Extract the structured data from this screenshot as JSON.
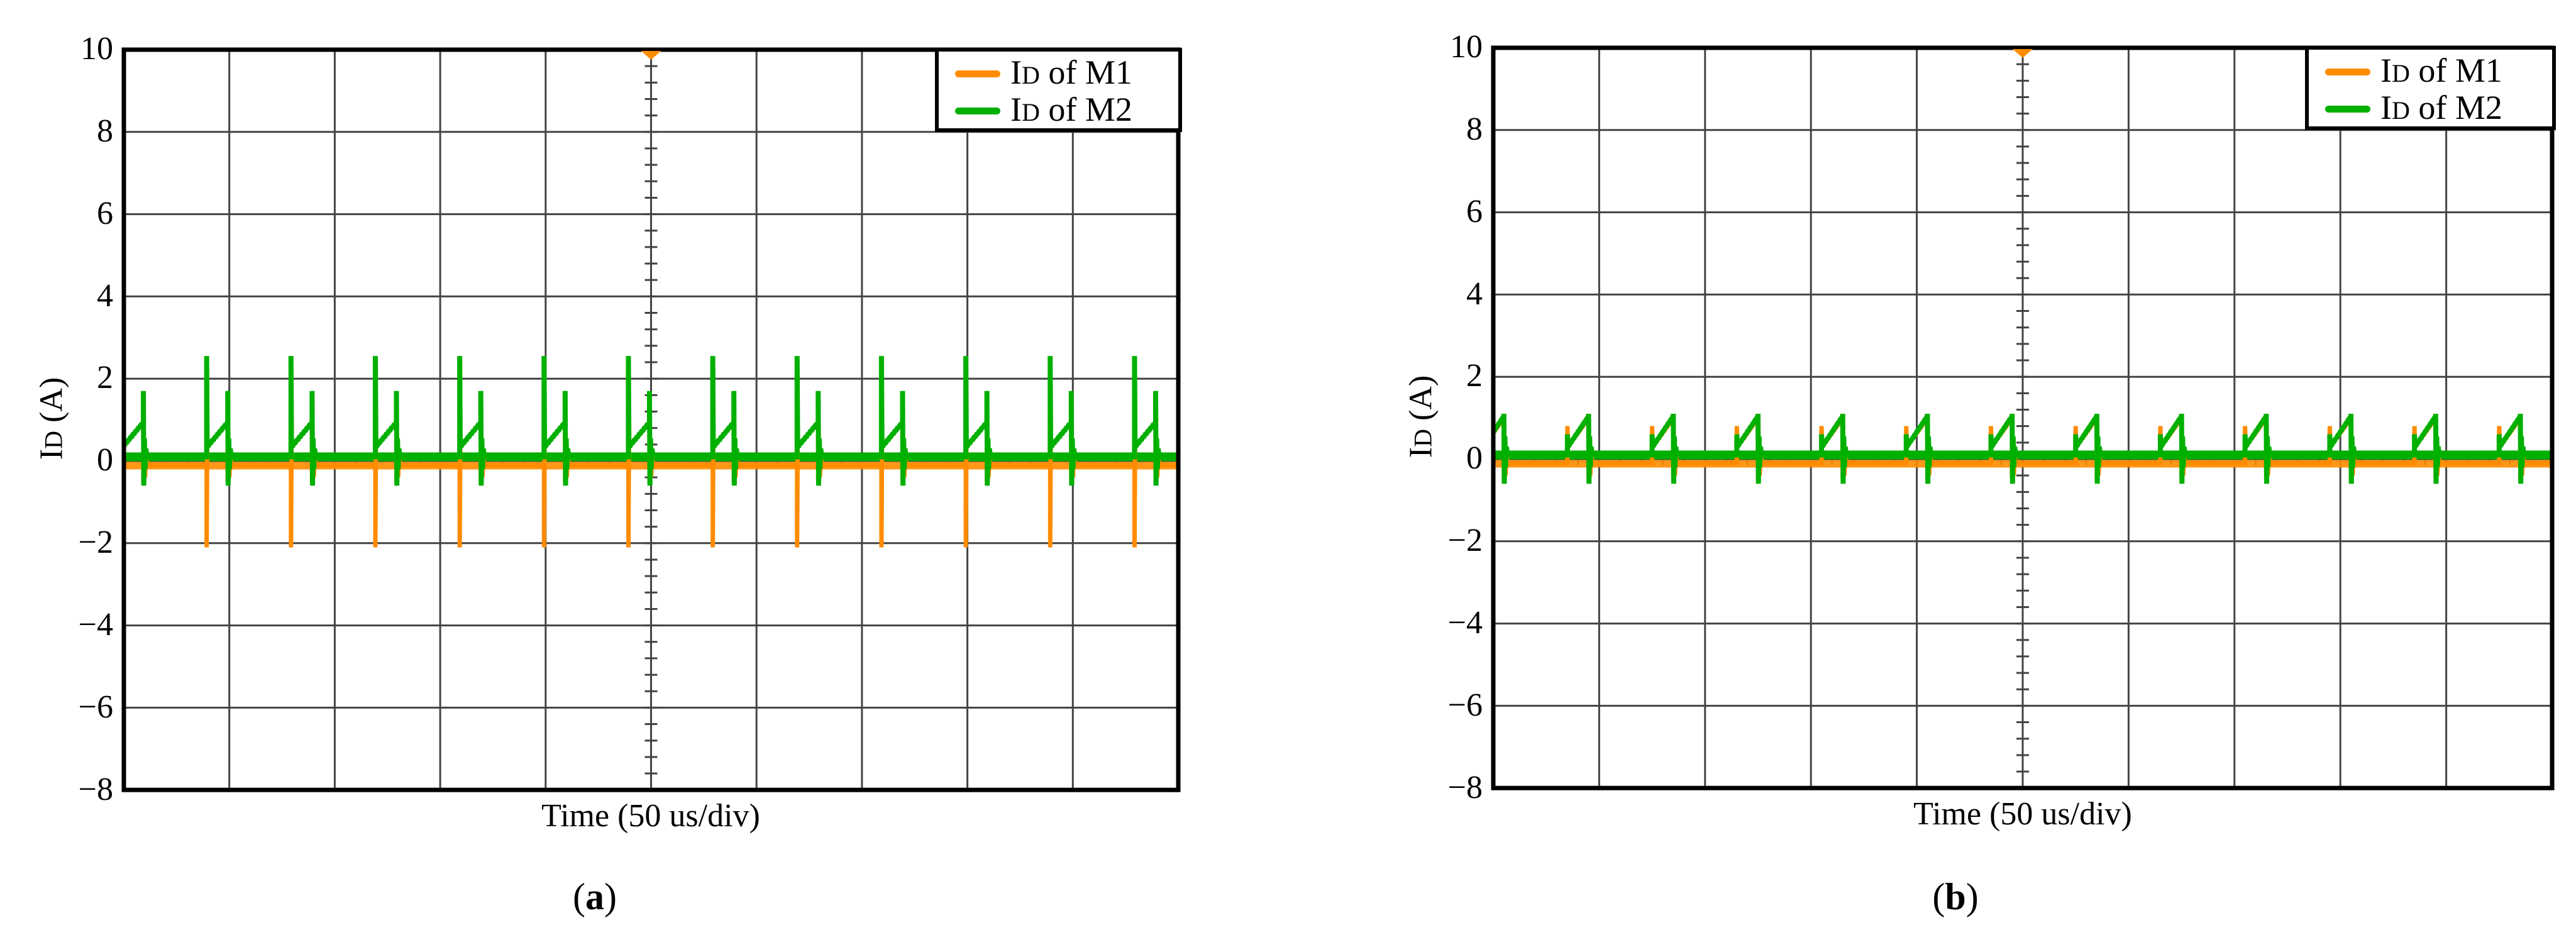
{
  "figure": {
    "panels": [
      {
        "id": "a",
        "subcaption": "a",
        "x_label": "Time (50 us/div)",
        "y_label_main": "I",
        "y_label_sub": "D",
        "y_label_unit": " (A)",
        "y_ticks": [
          "10",
          "8",
          "6",
          "4",
          "2",
          "0",
          "−2",
          "−4",
          "−6",
          "−8"
        ],
        "legend": [
          {
            "main": "I",
            "sub": "D",
            "rest": " of M1",
            "color": "#ff8c00"
          },
          {
            "main": "I",
            "sub": "D",
            "rest": " of M2",
            "color": "#00b000"
          }
        ]
      },
      {
        "id": "b",
        "subcaption": "b",
        "x_label": "Time (50 us/div)",
        "y_label_main": "I",
        "y_label_sub": "D",
        "y_label_unit": " (A)",
        "y_ticks": [
          "10",
          "8",
          "6",
          "4",
          "2",
          "0",
          "−2",
          "−4",
          "−6",
          "−8"
        ],
        "legend": [
          {
            "main": "I",
            "sub": "D",
            "rest": " of M1",
            "color": "#ff8c00"
          },
          {
            "main": "I",
            "sub": "D",
            "rest": " of M2",
            "color": "#00b000"
          }
        ]
      }
    ]
  },
  "chart_data": [
    {
      "type": "line",
      "title": "(a)",
      "xlabel": "Time (50 us/div)",
      "ylabel": "ID (A)",
      "ylim": [
        -8,
        10
      ],
      "x_divisions": 10,
      "y_ticks": [
        10,
        8,
        6,
        4,
        2,
        0,
        -2,
        -4,
        -6,
        -8
      ],
      "grid": true,
      "legend_position": "upper right",
      "trigger_marker": {
        "color": "#ff8c00",
        "position": "top-center"
      },
      "period_div": 0.8,
      "pulse_width_div": 0.2,
      "series": [
        {
          "name": "ID of M1",
          "color": "#ff8c00",
          "baseline_A": -0.1,
          "pulse_start_A": 0.35,
          "pulse_end_A": 0.95,
          "turn_on_spike_A": -2.1,
          "turn_off_spike_A": -0.5
        },
        {
          "name": "ID of M2",
          "color": "#00b000",
          "baseline_A": 0.1,
          "pulse_start_A": 0.35,
          "pulse_end_A": 0.95,
          "turn_on_spike_A": 2.55,
          "turn_off_spike_A": 1.7,
          "turn_off_undershoot_A": -0.6
        }
      ]
    },
    {
      "type": "line",
      "title": "(b)",
      "xlabel": "Time (50 us/div)",
      "ylabel": "ID (A)",
      "ylim": [
        -8,
        10
      ],
      "x_divisions": 10,
      "y_ticks": [
        10,
        8,
        6,
        4,
        2,
        0,
        -2,
        -4,
        -6,
        -8
      ],
      "grid": true,
      "legend_position": "upper right",
      "trigger_marker": {
        "color": "#ff8c00",
        "position": "top-center"
      },
      "period_div": 0.8,
      "pulse_width_div": 0.2,
      "series": [
        {
          "name": "ID of M1",
          "color": "#ff8c00",
          "baseline_A": -0.1,
          "pulse_start_A": 0.3,
          "pulse_end_A": 1.0,
          "turn_on_spike_A": 0.8,
          "turn_off_spike_A": -0.4
        },
        {
          "name": "ID of M2",
          "color": "#00b000",
          "baseline_A": 0.1,
          "pulse_start_A": 0.3,
          "pulse_end_A": 1.05,
          "turn_on_spike_A": 0.6,
          "turn_off_spike_A": 1.1,
          "turn_off_undershoot_A": -0.6
        }
      ]
    }
  ]
}
